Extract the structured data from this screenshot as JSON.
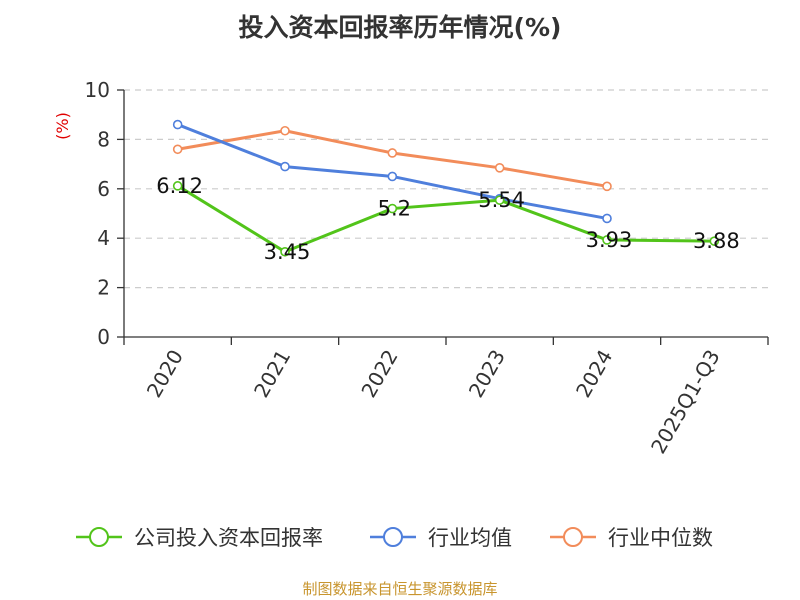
{
  "chart_data": {
    "type": "line",
    "title": "投入资本回报率历年情况(%)",
    "ylabel": "(%)",
    "xlabel": "",
    "categories": [
      "2020",
      "2021",
      "2022",
      "2023",
      "2024",
      "2025Q1-Q3"
    ],
    "ylim": [
      0,
      10
    ],
    "yticks": [
      0,
      2,
      4,
      6,
      8,
      10
    ],
    "grid": true,
    "legend_position": "bottom",
    "series": [
      {
        "name": "公司投入资本回报率",
        "color": "#52c41a",
        "values": [
          6.12,
          3.45,
          5.2,
          5.54,
          3.93,
          3.88
        ],
        "labels": [
          "6.12",
          "3.45",
          "5.2",
          "5.54",
          "3.93",
          "3.88"
        ]
      },
      {
        "name": "行业均值",
        "color": "#4f7fdc",
        "values": [
          8.6,
          6.9,
          6.5,
          5.6,
          4.8,
          null
        ]
      },
      {
        "name": "行业中位数",
        "color": "#f28c5a",
        "values": [
          7.6,
          8.35,
          7.45,
          6.85,
          6.1,
          null
        ]
      }
    ]
  },
  "source": "制图数据来自恒生聚源数据库",
  "colors": {
    "ylabel": "#e00000",
    "source": "#c8952e",
    "axis": "#333333",
    "grid": "#cccccc"
  }
}
